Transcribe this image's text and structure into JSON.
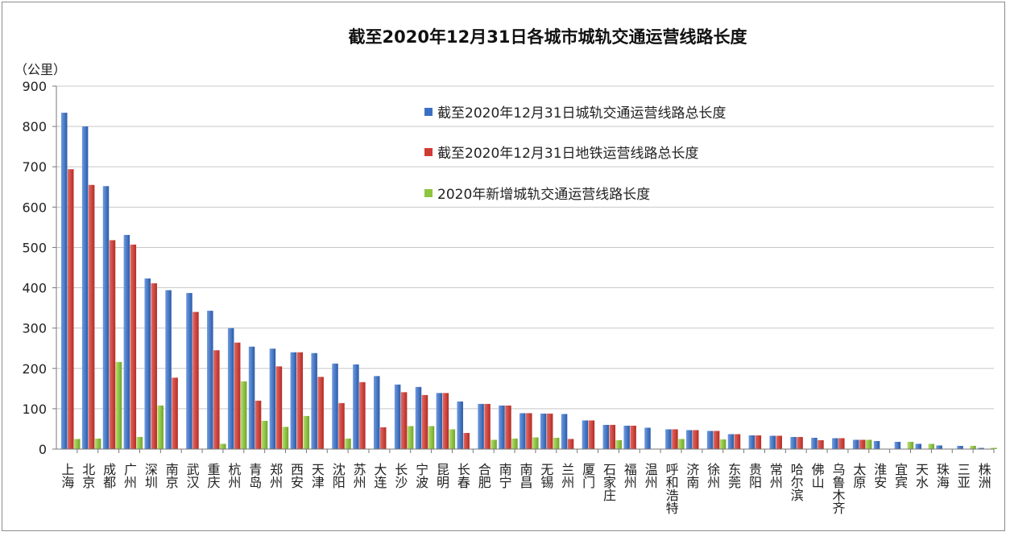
{
  "chart_data": {
    "type": "bar",
    "title": "截至2020年12月31日各城市城轨交通运营线路长度",
    "ylabel": "（公里）",
    "xlabel": "",
    "ylim": [
      0,
      900
    ],
    "yticks": [
      0,
      100,
      200,
      300,
      400,
      500,
      600,
      700,
      800,
      900
    ],
    "grid": true,
    "legend_position": "top-right",
    "categories": [
      "上海",
      "北京",
      "成都",
      "广州",
      "深圳",
      "南京",
      "武汉",
      "重庆",
      "杭州",
      "青岛",
      "郑州",
      "西安",
      "天津",
      "沈阳",
      "苏州",
      "大连",
      "长沙",
      "宁波",
      "昆明",
      "长春",
      "合肥",
      "南宁",
      "南昌",
      "无锡",
      "兰州",
      "厦门",
      "石家庄",
      "福州",
      "温州",
      "呼和浩特",
      "济南",
      "徐州",
      "东莞",
      "贵阳",
      "常州",
      "哈尔滨",
      "佛山",
      "乌鲁木齐",
      "太原",
      "淮安",
      "宜宾",
      "天水",
      "珠海",
      "三亚",
      "株洲"
    ],
    "series": [
      {
        "name": "截至2020年12月31日城轨交通运营线路总长度",
        "color": "#3a6fc4",
        "values": [
          834,
          800,
          652,
          531,
          423,
          394,
          387,
          343,
          300,
          254,
          249,
          240,
          238,
          212,
          210,
          181,
          160,
          154,
          139,
          118,
          112,
          108,
          89,
          88,
          87,
          71,
          60,
          58,
          53,
          49,
          47,
          45,
          37,
          34,
          33,
          30,
          28,
          27,
          23,
          20,
          18,
          13,
          9,
          8,
          3
        ]
      },
      {
        "name": "截至2020年12月31日地铁运营线路总长度",
        "color": "#d03b34",
        "values": [
          694,
          655,
          518,
          507,
          411,
          177,
          340,
          245,
          264,
          120,
          205,
          240,
          179,
          114,
          166,
          54,
          141,
          134,
          139,
          40,
          112,
          108,
          89,
          88,
          25,
          71,
          60,
          58,
          0,
          49,
          47,
          45,
          37,
          34,
          33,
          30,
          22,
          27,
          23,
          0,
          0,
          0,
          0,
          0,
          0
        ]
      },
      {
        "name": "2020年新增城轨交通运营线路长度",
        "color": "#8dc63f",
        "values": [
          25,
          26,
          216,
          30,
          108,
          0,
          0,
          13,
          168,
          70,
          55,
          82,
          0,
          26,
          0,
          0,
          57,
          57,
          49,
          0,
          23,
          26,
          29,
          28,
          0,
          0,
          22,
          0,
          0,
          25,
          0,
          24,
          0,
          0,
          0,
          0,
          0,
          0,
          23,
          0,
          18,
          13,
          0,
          8,
          3
        ]
      }
    ]
  }
}
